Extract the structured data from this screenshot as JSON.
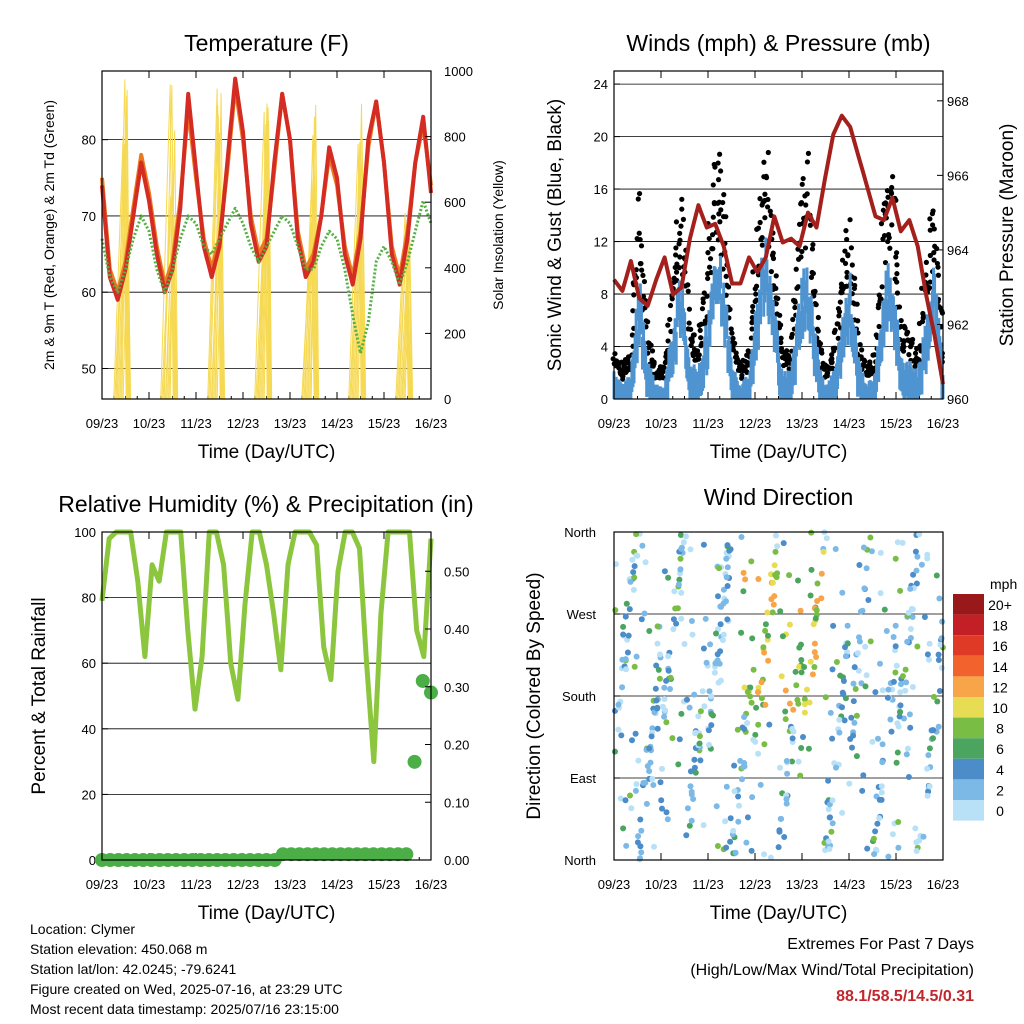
{
  "chart_data": [
    {
      "type": "line",
      "title": "Temperature (F)",
      "xlabel": "Time (Day/UTC)",
      "ylabel": "2m & 9m T (Red, Orange) & 2m Td (Green)",
      "ylabel_right": "Solar Insolation (Yellow)",
      "x_ticks": [
        "09/23",
        "10/23",
        "11/23",
        "12/23",
        "13/23",
        "14/23",
        "15/23",
        "16/23"
      ],
      "ylim": [
        46,
        89
      ],
      "y_ticks": [
        "50",
        "60",
        "70",
        "80"
      ],
      "y_tick_values": [
        50,
        60,
        70,
        80
      ],
      "ylim_right": [
        0,
        1000
      ],
      "y_ticks_right": [
        "0",
        "200",
        "400",
        "600",
        "800",
        "1000"
      ],
      "y_tick_values_right": [
        0,
        200,
        400,
        600,
        800,
        1000
      ],
      "grid": "horizontal",
      "series": [
        {
          "color": "#ea7a22",
          "values": [
            75,
            63,
            60,
            64,
            71,
            78,
            73,
            66,
            61,
            64,
            72,
            84,
            75,
            67,
            63,
            67,
            76,
            87,
            80,
            70,
            65,
            67,
            76,
            86,
            80,
            68,
            63,
            65,
            70,
            78,
            74,
            66,
            62,
            68,
            79,
            85,
            77,
            66,
            62,
            68,
            77,
            82,
            74
          ]
        },
        {
          "color": "#d42c23",
          "values": [
            74,
            62,
            59,
            63,
            70,
            77,
            72,
            65,
            60,
            63,
            71,
            86,
            76,
            66,
            62,
            66,
            77,
            88,
            81,
            69,
            64,
            66,
            77,
            86,
            80,
            67,
            62,
            64,
            70,
            79,
            75,
            65,
            61,
            67,
            80,
            85,
            77,
            65,
            61,
            67,
            77,
            83,
            73
          ]
        },
        {
          "color": "#54b041",
          "values": [
            67,
            62,
            60,
            63,
            67,
            70,
            68,
            63,
            60,
            63,
            67,
            70,
            69,
            66,
            65,
            67,
            69,
            71,
            69,
            66,
            64,
            66,
            68,
            70,
            69,
            66,
            63,
            63,
            66,
            68,
            67,
            63,
            57,
            52,
            56,
            64,
            66,
            64,
            61,
            64,
            68,
            72,
            69
          ]
        },
        {
          "color": "#f6d952",
          "values": [
            0,
            980,
            0,
            960,
            0,
            980,
            0,
            960,
            0,
            950,
            0,
            970,
            0,
            650,
            0
          ]
        }
      ]
    },
    {
      "type": "line",
      "title": "Winds (mph) & Pressure (mb)",
      "xlabel": "Time (Day/UTC)",
      "ylabel": "Sonic Wind & Gust (Blue, Black)",
      "ylabel_right": "Station Pressure (Maroon)",
      "x_ticks": [
        "09/23",
        "10/23",
        "11/23",
        "12/23",
        "13/23",
        "14/23",
        "15/23",
        "16/23"
      ],
      "ylim": [
        0,
        25
      ],
      "y_ticks": [
        "0",
        "4",
        "8",
        "12",
        "16",
        "20",
        "24"
      ],
      "y_tick_values": [
        0,
        4,
        8,
        12,
        16,
        20,
        24
      ],
      "ylim_right": [
        960,
        968.8
      ],
      "y_ticks_right": [
        "960",
        "962",
        "964",
        "966",
        "968"
      ],
      "y_tick_values_right": [
        960,
        962,
        964,
        966,
        968
      ],
      "grid": "horizontal",
      "series": [
        {
          "color": "#000000",
          "values": [
            3,
            2,
            3,
            14,
            4,
            2,
            2,
            9,
            13,
            5,
            3,
            9,
            17,
            13,
            4,
            2,
            3,
            11,
            16,
            10,
            3,
            3,
            12,
            15,
            6,
            2,
            3,
            8,
            12,
            4,
            2,
            3,
            13,
            15,
            5,
            4,
            3,
            9,
            13,
            3
          ]
        },
        {
          "color": "#4f94d0",
          "values": [
            2,
            1,
            2,
            9,
            3,
            1,
            1,
            6,
            9,
            3,
            2,
            6,
            12,
            9,
            3,
            1,
            2,
            8,
            12,
            7,
            2,
            2,
            8,
            11,
            4,
            1,
            2,
            6,
            9,
            3,
            1,
            2,
            9,
            10,
            3,
            3,
            2,
            6,
            10,
            2
          ]
        },
        {
          "color": "#a4201d",
          "values": [
            963.2,
            962.9,
            963.7,
            962.7,
            962.5,
            963.2,
            963.8,
            962.8,
            963.0,
            964.3,
            965.2,
            964.6,
            964.7,
            964.1,
            963.1,
            963.1,
            963.8,
            963.4,
            963.8,
            964.9,
            964.2,
            964.3,
            964.1,
            965.0,
            964.6,
            965.9,
            967.1,
            967.6,
            967.3,
            966.5,
            965.7,
            964.9,
            964.8,
            965.4,
            964.5,
            964.8,
            964.1,
            962.8,
            961.7,
            960.4
          ]
        }
      ]
    },
    {
      "type": "line",
      "title": "Relative Humidity (%) & Precipitation (in)",
      "xlabel": "Time (Day/UTC)",
      "ylabel": "Percent & Total Rainfall",
      "x_ticks": [
        "09/23",
        "10/23",
        "11/23",
        "12/23",
        "13/23",
        "14/23",
        "15/23",
        "16/23"
      ],
      "ylim": [
        0,
        100
      ],
      "y_ticks": [
        "0",
        "20",
        "40",
        "60",
        "80",
        "100"
      ],
      "y_tick_values": [
        0,
        20,
        40,
        60,
        80,
        100
      ],
      "ylim_right": [
        0,
        0.568
      ],
      "y_ticks_right": [
        "0.00",
        "0.10",
        "0.20",
        "0.30",
        "0.40",
        "0.50"
      ],
      "y_tick_values_right": [
        0,
        0.1,
        0.2,
        0.3,
        0.4,
        0.5
      ],
      "grid": "horizontal",
      "series": [
        {
          "color": "#8cc63f",
          "values": [
            79,
            98,
            100,
            100,
            100,
            85,
            62,
            90,
            85,
            100,
            100,
            100,
            70,
            46,
            62,
            100,
            100,
            90,
            60,
            49,
            78,
            100,
            100,
            90,
            75,
            58,
            90,
            100,
            100,
            100,
            96,
            65,
            55,
            88,
            100,
            100,
            95,
            60,
            30,
            75,
            100,
            100,
            100,
            100,
            70,
            62,
            98
          ]
        },
        {
          "color": "#4cae47",
          "values": [
            0,
            0,
            0,
            0,
            0,
            0,
            0,
            0,
            0,
            0,
            0,
            0,
            0,
            0,
            0,
            0,
            0,
            0,
            0,
            0,
            0,
            0,
            0.01,
            0.01,
            0.01,
            0.01,
            0.01,
            0.01,
            0.01,
            0.01,
            0.01,
            0.01,
            0.01,
            0.01,
            0.01,
            0.01,
            0.01,
            0.01,
            0.17,
            0.31,
            0.29
          ]
        }
      ]
    },
    {
      "type": "scatter",
      "title": "Wind Direction",
      "xlabel": "Time (Day/UTC)",
      "ylabel": "Direction (Colored By Speed)",
      "x_ticks": [
        "09/23",
        "10/23",
        "11/23",
        "12/23",
        "13/23",
        "14/23",
        "15/23",
        "16/23"
      ],
      "ylim": [
        0,
        360
      ],
      "y_ticks": [
        "North",
        "East",
        "South",
        "West",
        "North"
      ],
      "y_tick_values": [
        0,
        90,
        180,
        270,
        360
      ],
      "grid": "horizontal",
      "colorbar": {
        "title": "mph",
        "labels": [
          "20+",
          "18",
          "16",
          "14",
          "12",
          "10",
          "8",
          "6",
          "4",
          "2",
          "0"
        ],
        "colors": [
          "#99191a",
          "#c22026",
          "#de3a25",
          "#f2622d",
          "#f8a448",
          "#e6dd55",
          "#79bd45",
          "#4ba55e",
          "#4b8cc9",
          "#7cb9e6",
          "#b8e0f7"
        ]
      }
    }
  ],
  "info": {
    "location": "Location: Clymer",
    "elevation": "Station elevation: 450.068 m",
    "latlon": "Station lat/lon: 42.0245; -79.6241",
    "created": "Figure created on Wed, 2025-07-16, at 23:29 UTC",
    "recent": "Most recent data timestamp: 2025/07/16 23:15:00"
  },
  "extremes": {
    "title": "Extremes For Past 7 Days",
    "subtitle": "(High/Low/Max Wind/Total Precipitation)",
    "values": "88.1/58.5/14.5/0.31"
  }
}
